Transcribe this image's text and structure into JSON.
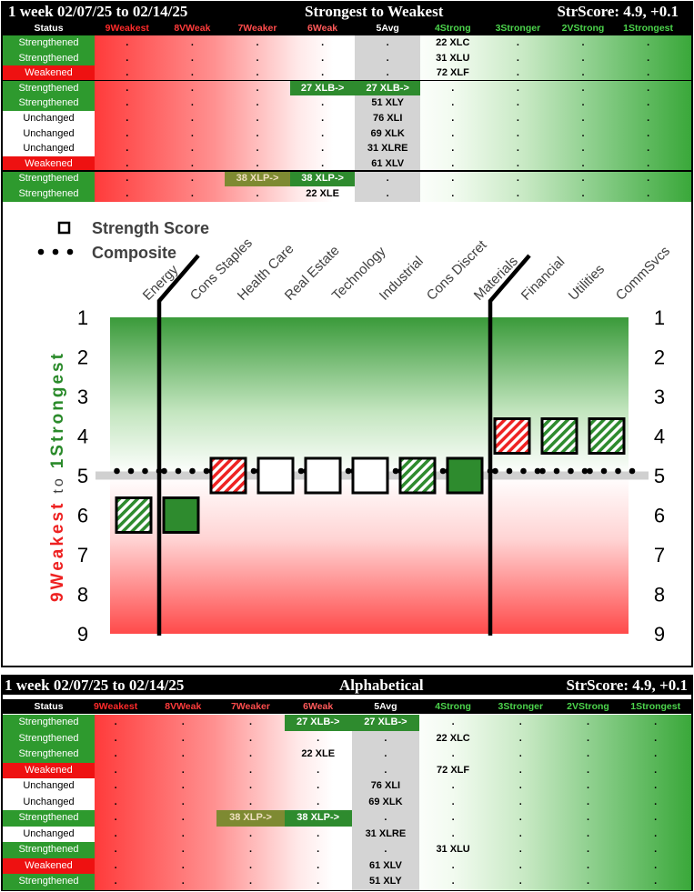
{
  "top_panel": {
    "title_left": "1 week 02/07/25 to 02/14/25",
    "title_center": "Strongest to Weakest",
    "title_right": "StrScore: 4.9, +0.1",
    "columns": [
      "Status",
      "9Weakest",
      "8VWeak",
      "7Weaker",
      "6Weak",
      "5Avg",
      "4Strong",
      "3Stronger",
      "2VStrong",
      "1Strongest"
    ],
    "rows": [
      {
        "status": "Strengthened",
        "kind": "str",
        "cells": {
          "4": "22 XLC"
        }
      },
      {
        "status": "Strengthened",
        "kind": "str",
        "cells": {
          "4": "31 XLU"
        }
      },
      {
        "status": "Weakened",
        "kind": "wk",
        "cells": {
          "4": "72 XLF"
        }
      },
      {
        "status": "Strengthened",
        "kind": "str",
        "cells": {
          "6": "27 XLB->",
          "5": "27 XLB->"
        }
      },
      {
        "status": "Strengthened",
        "kind": "str",
        "cells": {
          "5": "51 XLY"
        }
      },
      {
        "status": "Unchanged",
        "kind": "un",
        "cells": {
          "5": "76 XLI"
        }
      },
      {
        "status": "Unchanged",
        "kind": "un",
        "cells": {
          "5": "69 XLK"
        }
      },
      {
        "status": "Unchanged",
        "kind": "un",
        "cells": {
          "5": "31 XLRE"
        }
      },
      {
        "status": "Weakened",
        "kind": "wk",
        "cells": {
          "5": "61 XLV"
        }
      },
      {
        "status": "Strengthened",
        "kind": "str",
        "cells": {
          "7": "38 XLP->",
          "6": "38 XLP->"
        }
      },
      {
        "status": "Strengthened",
        "kind": "str",
        "cells": {
          "6": "22 XLE"
        }
      }
    ],
    "dot": "."
  },
  "bottom_panel": {
    "title_left": "1 week 02/07/25 to 02/14/25",
    "title_center": "Alphabetical",
    "title_right": "StrScore: 4.9, +0.1",
    "columns": [
      "Status",
      "9Weakest",
      "8VWeak",
      "7Weaker",
      "6Weak",
      "5Avg",
      "4Strong",
      "3Stronger",
      "2VStrong",
      "1Strongest"
    ],
    "rows": [
      {
        "status": "Strengthened",
        "kind": "str",
        "cells": {
          "6": "27 XLB->",
          "5": "27 XLB->"
        }
      },
      {
        "status": "Strengthened",
        "kind": "str",
        "cells": {
          "4": "22 XLC"
        }
      },
      {
        "status": "Strengthened",
        "kind": "str",
        "cells": {
          "6": "22 XLE"
        }
      },
      {
        "status": "Weakened",
        "kind": "wk",
        "cells": {
          "4": "72 XLF"
        }
      },
      {
        "status": "Unchanged",
        "kind": "un",
        "cells": {
          "5": "76 XLI"
        }
      },
      {
        "status": "Unchanged",
        "kind": "un",
        "cells": {
          "5": "69 XLK"
        }
      },
      {
        "status": "Strengthened",
        "kind": "str",
        "cells": {
          "7": "38 XLP->",
          "6": "38 XLP->"
        }
      },
      {
        "status": "Unchanged",
        "kind": "un",
        "cells": {
          "5": "31 XLRE"
        }
      },
      {
        "status": "Strengthened",
        "kind": "str",
        "cells": {
          "4": "31 XLU"
        }
      },
      {
        "status": "Weakened",
        "kind": "wk",
        "cells": {
          "5": "61 XLV"
        }
      },
      {
        "status": "Strengthened",
        "kind": "str",
        "cells": {
          "5": "51 XLY"
        }
      }
    ]
  },
  "chart_data": {
    "type": "scatter",
    "legend": [
      {
        "label": "Strength Score",
        "marker": "square"
      },
      {
        "label": "Composite",
        "marker": "dots"
      }
    ],
    "categories": [
      "Energy",
      "Cons Staples",
      "Health Care",
      "Real Estate",
      "Technology",
      "Industrial",
      "Cons Discret",
      "Materials",
      "Financial",
      "Utilities",
      "CommSvcs"
    ],
    "strength_score": [
      6,
      6,
      5,
      5,
      5,
      5,
      5,
      5,
      4,
      4,
      4
    ],
    "marker_style": [
      "hatch-green",
      "solid-green",
      "hatch-red",
      "white",
      "white",
      "white",
      "hatch-green",
      "solid-green",
      "hatch-red",
      "hatch-green",
      "hatch-green"
    ],
    "composite": 5,
    "y_axis_title": {
      "low": "9Weakest",
      "to": "to",
      "high": "1Strongest"
    },
    "y_ticks": [
      1,
      2,
      3,
      4,
      5,
      6,
      7,
      8,
      9
    ],
    "ylim": [
      1,
      9
    ],
    "y_inverted": true,
    "dividers_after": [
      "Energy",
      "Materials"
    ],
    "colors": {
      "green": "#2e8b2e",
      "red": "#ee2222",
      "axis_green": "#2a8a2a",
      "axis_red": "#ee2222"
    }
  }
}
